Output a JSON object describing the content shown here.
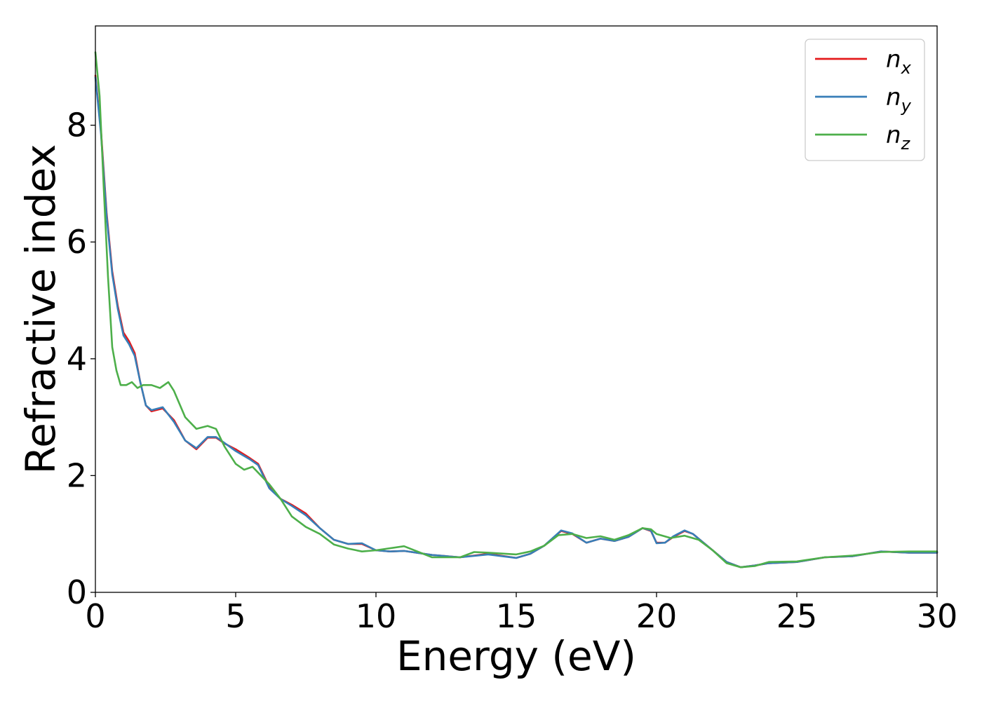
{
  "chart_data": {
    "type": "line",
    "xlabel": "Energy (eV)",
    "ylabel": "Refractive index",
    "xlim": [
      0,
      30
    ],
    "ylim": [
      0,
      9.7
    ],
    "xticks": [
      "0",
      "5",
      "10",
      "15",
      "20",
      "25",
      "30"
    ],
    "yticks": [
      "0",
      "2",
      "4",
      "6",
      "8"
    ],
    "legend_position": "top-right",
    "grid": false,
    "colors": {
      "nx": "#e41a1c",
      "ny": "#377eb8",
      "nz": "#4daf4a"
    },
    "series": [
      {
        "key": "nx",
        "name_base": "n",
        "name_sub": "x",
        "x": [
          0,
          0.2,
          0.4,
          0.6,
          0.8,
          1.0,
          1.2,
          1.4,
          1.6,
          1.8,
          2.0,
          2.4,
          2.8,
          3.2,
          3.6,
          4.0,
          4.3,
          4.6,
          5.0,
          5.5,
          5.8,
          6.2,
          6.6,
          7.0,
          7.5,
          8.0,
          8.5,
          9.0,
          9.5,
          10.0,
          10.5,
          11.0,
          12.0,
          13.0,
          14.0,
          15.0,
          15.5,
          16.0,
          16.6,
          17.0,
          17.5,
          18.0,
          18.5,
          19.0,
          19.5,
          19.8,
          20.0,
          20.3,
          20.6,
          21.0,
          21.3,
          21.6,
          22.0,
          22.5,
          23.0,
          23.5,
          24.0,
          25.0,
          26.0,
          27.0,
          28.0,
          29.0,
          30.0
        ],
        "y": [
          8.85,
          7.9,
          6.5,
          5.5,
          4.9,
          4.45,
          4.3,
          4.1,
          3.6,
          3.2,
          3.1,
          3.15,
          2.95,
          2.6,
          2.45,
          2.65,
          2.65,
          2.55,
          2.45,
          2.3,
          2.2,
          1.8,
          1.6,
          1.5,
          1.35,
          1.1,
          0.9,
          0.83,
          0.83,
          0.72,
          0.7,
          0.71,
          0.64,
          0.6,
          0.66,
          0.59,
          0.66,
          0.8,
          1.05,
          1.0,
          0.85,
          0.92,
          0.88,
          0.95,
          1.1,
          1.05,
          0.85,
          0.85,
          0.95,
          1.05,
          1.0,
          0.88,
          0.72,
          0.52,
          0.43,
          0.46,
          0.5,
          0.52,
          0.6,
          0.62,
          0.7,
          0.68,
          0.68
        ]
      },
      {
        "key": "ny",
        "name_base": "n",
        "name_sub": "y",
        "x": [
          0,
          0.2,
          0.4,
          0.6,
          0.8,
          1.0,
          1.2,
          1.4,
          1.6,
          1.8,
          2.0,
          2.4,
          2.8,
          3.2,
          3.6,
          4.0,
          4.3,
          4.6,
          5.0,
          5.5,
          5.8,
          6.2,
          6.6,
          7.0,
          7.5,
          8.0,
          8.5,
          9.0,
          9.5,
          10.0,
          10.5,
          11.0,
          12.0,
          13.0,
          14.0,
          15.0,
          15.5,
          16.0,
          16.6,
          17.0,
          17.5,
          18.0,
          18.5,
          19.0,
          19.5,
          19.8,
          20.0,
          20.3,
          20.6,
          21.0,
          21.3,
          21.6,
          22.0,
          22.5,
          23.0,
          23.5,
          24.0,
          25.0,
          26.0,
          27.0,
          28.0,
          29.0,
          30.0
        ],
        "y": [
          8.82,
          7.85,
          6.45,
          5.45,
          4.85,
          4.4,
          4.25,
          4.05,
          3.6,
          3.2,
          3.12,
          3.17,
          2.92,
          2.6,
          2.47,
          2.66,
          2.66,
          2.56,
          2.42,
          2.28,
          2.18,
          1.78,
          1.6,
          1.48,
          1.32,
          1.1,
          0.9,
          0.83,
          0.84,
          0.72,
          0.7,
          0.71,
          0.64,
          0.6,
          0.65,
          0.59,
          0.66,
          0.8,
          1.06,
          1.01,
          0.85,
          0.92,
          0.88,
          0.95,
          1.1,
          1.06,
          0.84,
          0.85,
          0.96,
          1.06,
          1.0,
          0.88,
          0.72,
          0.52,
          0.43,
          0.46,
          0.5,
          0.52,
          0.6,
          0.62,
          0.7,
          0.68,
          0.68
        ]
      },
      {
        "key": "nz",
        "name_base": "n",
        "name_sub": "z",
        "x": [
          0,
          0.15,
          0.3,
          0.45,
          0.6,
          0.75,
          0.9,
          1.1,
          1.3,
          1.5,
          1.7,
          2.0,
          2.3,
          2.6,
          2.8,
          3.2,
          3.6,
          4.0,
          4.3,
          4.6,
          5.0,
          5.3,
          5.6,
          5.8,
          6.2,
          6.6,
          7.0,
          7.5,
          8.0,
          8.5,
          9.0,
          9.5,
          10.0,
          11.0,
          12.0,
          13.0,
          13.5,
          14.0,
          15.0,
          15.5,
          16.0,
          16.5,
          17.0,
          17.5,
          18.0,
          18.5,
          19.0,
          19.5,
          19.8,
          20.0,
          20.5,
          21.0,
          21.5,
          22.0,
          22.5,
          23.0,
          23.5,
          24.0,
          25.0,
          26.0,
          27.0,
          28.0,
          29.0,
          30.0
        ],
        "y": [
          9.25,
          8.5,
          6.9,
          5.4,
          4.2,
          3.8,
          3.55,
          3.55,
          3.6,
          3.5,
          3.55,
          3.55,
          3.5,
          3.6,
          3.45,
          3.0,
          2.8,
          2.85,
          2.8,
          2.5,
          2.2,
          2.1,
          2.15,
          2.05,
          1.85,
          1.6,
          1.3,
          1.12,
          1.0,
          0.82,
          0.75,
          0.7,
          0.72,
          0.79,
          0.6,
          0.6,
          0.69,
          0.68,
          0.65,
          0.7,
          0.8,
          0.98,
          1.0,
          0.93,
          0.96,
          0.9,
          0.98,
          1.1,
          1.08,
          1.0,
          0.93,
          0.97,
          0.9,
          0.72,
          0.5,
          0.43,
          0.45,
          0.52,
          0.53,
          0.6,
          0.63,
          0.69,
          0.7,
          0.7
        ]
      }
    ]
  }
}
